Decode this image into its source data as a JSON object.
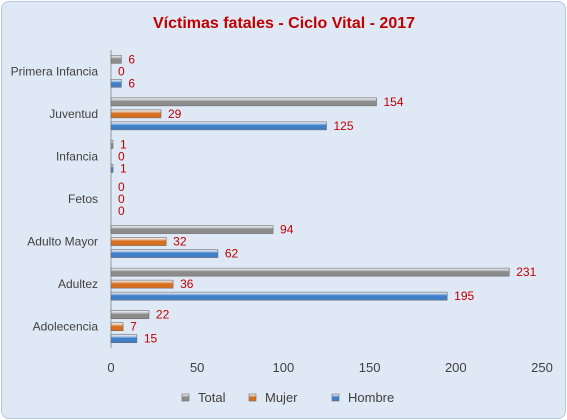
{
  "chart_data": {
    "type": "bar",
    "orientation": "horizontal",
    "title": "Víctimas fatales - Ciclo Vital - 2017",
    "categories": [
      "Primera Infancia",
      "Juventud",
      "Infancia",
      "Fetos",
      "Adulto Mayor",
      "Adultez",
      "Adolecencia"
    ],
    "series": [
      {
        "name": "Total",
        "values": [
          6,
          154,
          1,
          0,
          94,
          231,
          22
        ],
        "color": "#8c8c8c"
      },
      {
        "name": "Mujer",
        "values": [
          0,
          29,
          0,
          0,
          32,
          36,
          7
        ],
        "color": "#d86f1f"
      },
      {
        "name": "Hombre",
        "values": [
          6,
          125,
          1,
          0,
          62,
          195,
          15
        ],
        "color": "#3f7fc8"
      }
    ],
    "xlim": [
      0,
      250
    ],
    "xticks": [
      0,
      50,
      100,
      150,
      200,
      250
    ],
    "gridlines": false,
    "legend_position": "bottom",
    "colors": {
      "title": "#c00000",
      "data_label": "#c00000",
      "axis_text": "#404040",
      "background": "#dfe8f5"
    }
  }
}
